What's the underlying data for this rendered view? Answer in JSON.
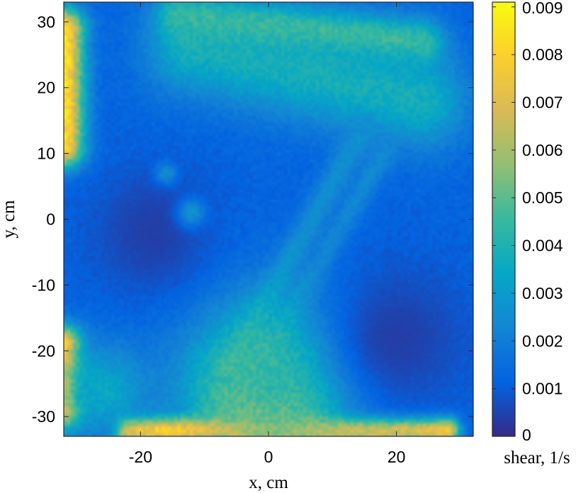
{
  "chart_data": {
    "type": "heatmap",
    "title": "",
    "xlabel": "x, cm",
    "ylabel": "y, cm",
    "colorbar_label": "shear, 1/s",
    "colormap": "parula",
    "colormap_stops": [
      "#352a87",
      "#0363e1",
      "#1485d4",
      "#06a7c6",
      "#38b99e",
      "#92bf73",
      "#d9ba56",
      "#fcce2e",
      "#f9fb0e"
    ],
    "xlim": [
      -32,
      32
    ],
    "ylim": [
      -33,
      33
    ],
    "clim": [
      0,
      0.0091
    ],
    "grid": false,
    "x_ticks": [
      -20,
      0,
      20
    ],
    "x_tick_labels": [
      "-20",
      "0",
      "20"
    ],
    "y_ticks": [
      -30,
      -20,
      -10,
      0,
      10,
      20,
      30
    ],
    "y_tick_labels": [
      "-30",
      "-20",
      "-10",
      "0",
      "10",
      "20",
      "30"
    ],
    "colorbar_ticks": [
      0,
      0.001,
      0.002,
      0.003,
      0.004,
      0.005,
      0.006,
      0.007,
      0.008,
      0.009
    ],
    "colorbar_tick_labels": [
      "0",
      "0.001",
      "0.002",
      "0.003",
      "0.004",
      "0.005",
      "0.006",
      "0.007",
      "0.008",
      "0.009"
    ],
    "field_description": {
      "background_level": 0.0012,
      "features": [
        {
          "kind": "band",
          "x0": -12,
          "y0": 26,
          "x1": 24,
          "y1": 18,
          "width": 5,
          "level": 0.0038
        },
        {
          "kind": "band",
          "x0": -14,
          "y0": 31,
          "x1": 24,
          "y1": 27,
          "width": 2.5,
          "level": 0.0045
        },
        {
          "kind": "band",
          "x0": -6,
          "y0": -22,
          "x1": 15,
          "y1": 14,
          "width": 1.6,
          "level": 0.0026
        },
        {
          "kind": "band",
          "x0": -3,
          "y0": -25,
          "x1": 18,
          "y1": 10,
          "width": 1.4,
          "level": 0.0024
        },
        {
          "kind": "band",
          "x0": -32,
          "y0": 29,
          "x1": -32,
          "y1": 11,
          "width": 2.2,
          "level": 0.0085
        },
        {
          "kind": "band",
          "x0": -32,
          "y0": -19,
          "x1": -32,
          "y1": -29,
          "width": 2.0,
          "level": 0.0085
        },
        {
          "kind": "band",
          "x0": -22,
          "y0": -32,
          "x1": 28,
          "y1": -32,
          "width": 1.3,
          "level": 0.0088
        },
        {
          "kind": "blob",
          "cx": 0,
          "cy": -29,
          "r": 7,
          "level": 0.0078
        },
        {
          "kind": "blob",
          "cx": 0,
          "cy": -24,
          "r": 9,
          "level": 0.0045
        },
        {
          "kind": "blob",
          "cx": -26,
          "cy": -26,
          "r": 5,
          "level": 0.0035
        },
        {
          "kind": "blob",
          "cx": -18,
          "cy": -2,
          "r": 7,
          "level": 0.0004
        },
        {
          "kind": "blob",
          "cx": 20,
          "cy": -18,
          "r": 8,
          "level": 0.0004
        },
        {
          "kind": "blob",
          "cx": -12,
          "cy": 1,
          "r": 1.5,
          "level": 0.0028
        },
        {
          "kind": "blob",
          "cx": -16,
          "cy": 7,
          "r": 1.2,
          "level": 0.0025
        }
      ]
    }
  }
}
